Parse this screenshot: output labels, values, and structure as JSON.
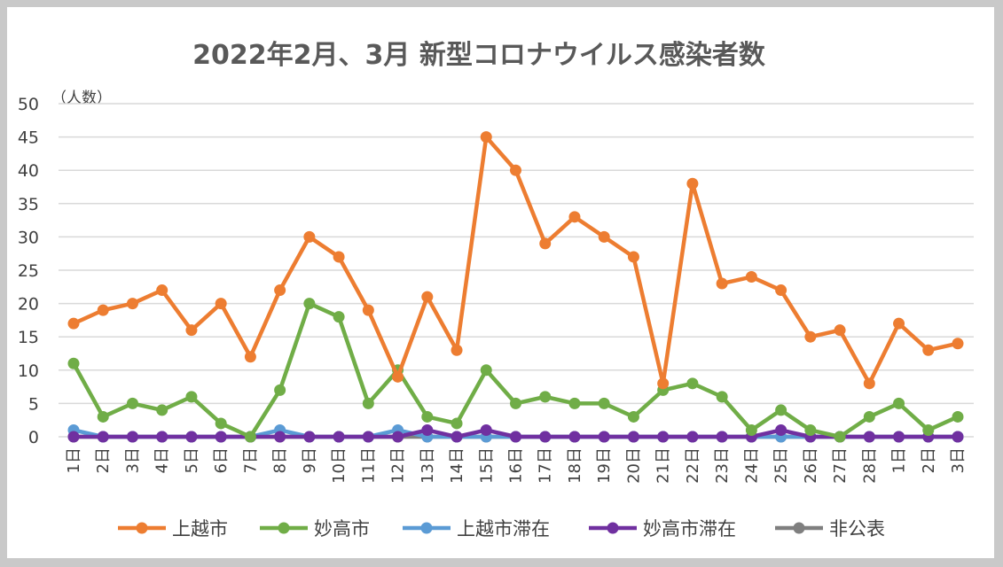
{
  "chart_data": {
    "type": "line",
    "title": "2022年2月、3月 新型コロナウイルス感染者数",
    "y_unit_label": "（人数）",
    "ylim": [
      0,
      50
    ],
    "yticks": [
      "0",
      "5",
      "10",
      "15",
      "20",
      "25",
      "30",
      "35",
      "40",
      "45",
      "50"
    ],
    "grid": true,
    "legend_position": "bottom",
    "categories": [
      "1日",
      "2日",
      "3日",
      "4日",
      "5日",
      "6日",
      "7日",
      "8日",
      "9日",
      "10日",
      "11日",
      "12日",
      "13日",
      "14日",
      "15日",
      "16日",
      "17日",
      "18日",
      "19日",
      "20日",
      "21日",
      "22日",
      "23日",
      "24日",
      "25日",
      "26日",
      "27日",
      "28日",
      "1日",
      "2日",
      "3日"
    ],
    "series": [
      {
        "name": "上越市",
        "color": "#ED7D31",
        "values": [
          17,
          19,
          20,
          22,
          16,
          20,
          12,
          22,
          30,
          27,
          19,
          9,
          21,
          13,
          45,
          40,
          29,
          33,
          30,
          27,
          8,
          38,
          23,
          24,
          22,
          15,
          16,
          8,
          17,
          13,
          14
        ]
      },
      {
        "name": "妙高市",
        "color": "#70AD47",
        "values": [
          11,
          3,
          5,
          4,
          6,
          2,
          0,
          7,
          20,
          18,
          5,
          10,
          3,
          2,
          10,
          5,
          6,
          5,
          5,
          3,
          7,
          8,
          6,
          1,
          4,
          1,
          0,
          3,
          5,
          1,
          3
        ]
      },
      {
        "name": "上越市滞在",
        "color": "#5B9BD5",
        "values": [
          1,
          0,
          0,
          0,
          0,
          0,
          0,
          1,
          0,
          0,
          0,
          1,
          0,
          0,
          0,
          0,
          0,
          0,
          0,
          0,
          0,
          0,
          0,
          0,
          0,
          0,
          0,
          0,
          0,
          0,
          0
        ]
      },
      {
        "name": "妙高市滞在",
        "color": "#7030A0",
        "values": [
          0,
          0,
          0,
          0,
          0,
          0,
          0,
          0,
          0,
          0,
          0,
          0,
          1,
          0,
          1,
          0,
          0,
          0,
          0,
          0,
          0,
          0,
          0,
          0,
          1,
          0,
          0,
          0,
          0,
          0,
          0
        ]
      },
      {
        "name": "非公表",
        "color": "#7F7F7F",
        "values": [
          0,
          0,
          0,
          0,
          0,
          0,
          0,
          0,
          0,
          0,
          0,
          0,
          0,
          0,
          0,
          0,
          0,
          0,
          0,
          0,
          0,
          0,
          0,
          0,
          0,
          0,
          0,
          0,
          0,
          0,
          0
        ]
      }
    ]
  }
}
